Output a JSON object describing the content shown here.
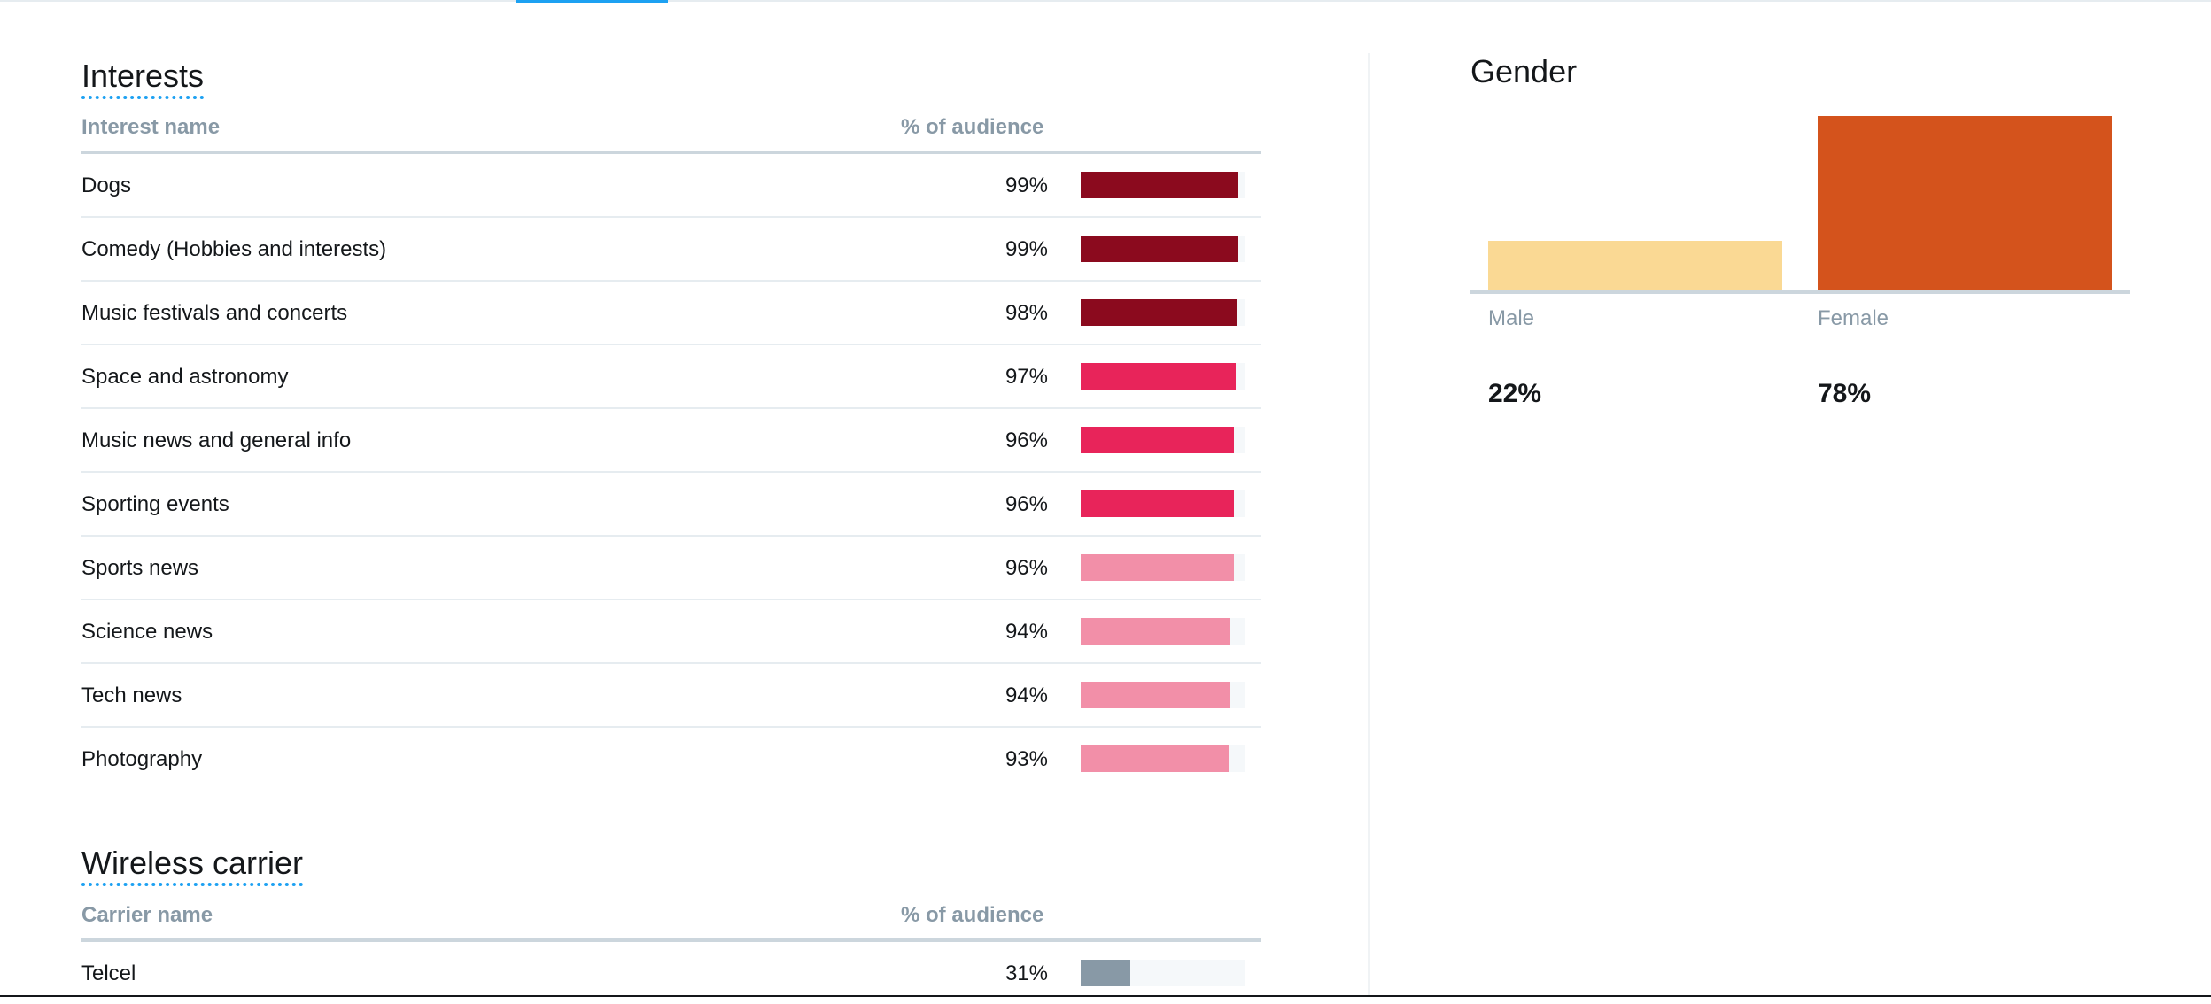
{
  "interests": {
    "title": "Interests",
    "header": {
      "name": "Interest name",
      "pct": "% of audience"
    },
    "rows": [
      {
        "name": "Dogs",
        "pct_label": "99%",
        "value": 99,
        "color": "#8b0a1e"
      },
      {
        "name": "Comedy (Hobbies and interests)",
        "pct_label": "99%",
        "value": 99,
        "color": "#8b0a1e"
      },
      {
        "name": "Music festivals and concerts",
        "pct_label": "98%",
        "value": 98,
        "color": "#8b0a1e"
      },
      {
        "name": "Space and astronomy",
        "pct_label": "97%",
        "value": 97,
        "color": "#e8245a"
      },
      {
        "name": "Music news and general info",
        "pct_label": "96%",
        "value": 96,
        "color": "#e8245a"
      },
      {
        "name": "Sporting events",
        "pct_label": "96%",
        "value": 96,
        "color": "#e8245a"
      },
      {
        "name": "Sports news",
        "pct_label": "96%",
        "value": 96,
        "color": "#f28fa8"
      },
      {
        "name": "Science news",
        "pct_label": "94%",
        "value": 94,
        "color": "#f28fa8"
      },
      {
        "name": "Tech news",
        "pct_label": "94%",
        "value": 94,
        "color": "#f28fa8"
      },
      {
        "name": "Photography",
        "pct_label": "93%",
        "value": 93,
        "color": "#f28fa8"
      }
    ]
  },
  "wireless_carrier": {
    "title": "Wireless carrier",
    "header": {
      "name": "Carrier name",
      "pct": "% of audience"
    },
    "rows": [
      {
        "name": "Telcel",
        "pct_label": "31%",
        "value": 31,
        "color": "#8899a6"
      }
    ]
  },
  "gender": {
    "title": "Gender",
    "items": [
      {
        "label": "Male",
        "pct_label": "22%",
        "value": 22,
        "color": "#fad994"
      },
      {
        "label": "Female",
        "pct_label": "78%",
        "value": 78,
        "color": "#d4531c"
      }
    ]
  },
  "chart_data": {
    "type": "bar",
    "categories": [
      "Male",
      "Female"
    ],
    "values": [
      22,
      78
    ],
    "title": "Gender",
    "ylim": [
      0,
      78
    ]
  }
}
